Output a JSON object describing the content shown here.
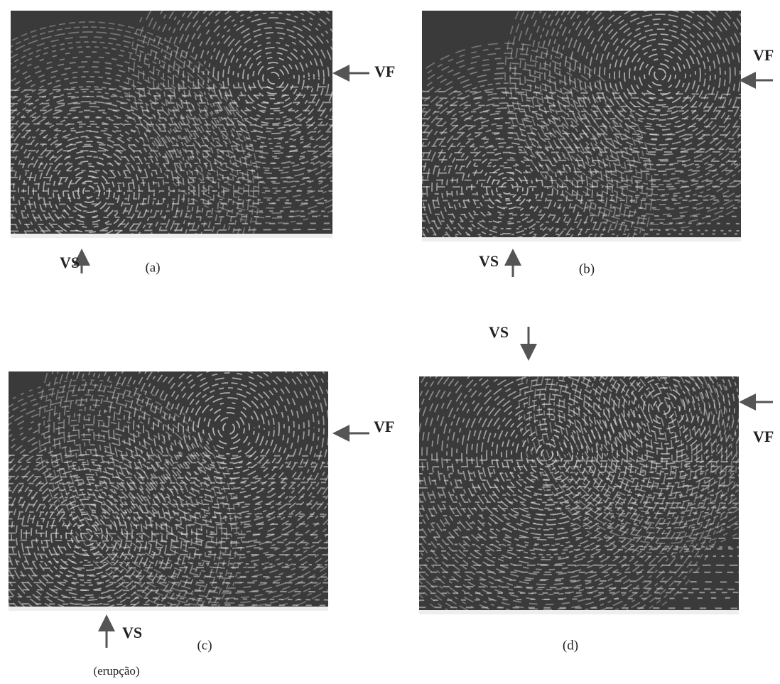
{
  "panels": [
    {
      "caption": "(a)",
      "vf_label": "VF",
      "vs_label": "VS"
    },
    {
      "caption": "(b)",
      "vf_label": "VF",
      "vs_label": "VS"
    },
    {
      "caption": "(c)",
      "vf_label": "VF",
      "vs_label": "VS",
      "vs_note": "(erupção)"
    },
    {
      "caption": "(d)",
      "vf_label": "VF",
      "vs_label": "VS"
    }
  ]
}
